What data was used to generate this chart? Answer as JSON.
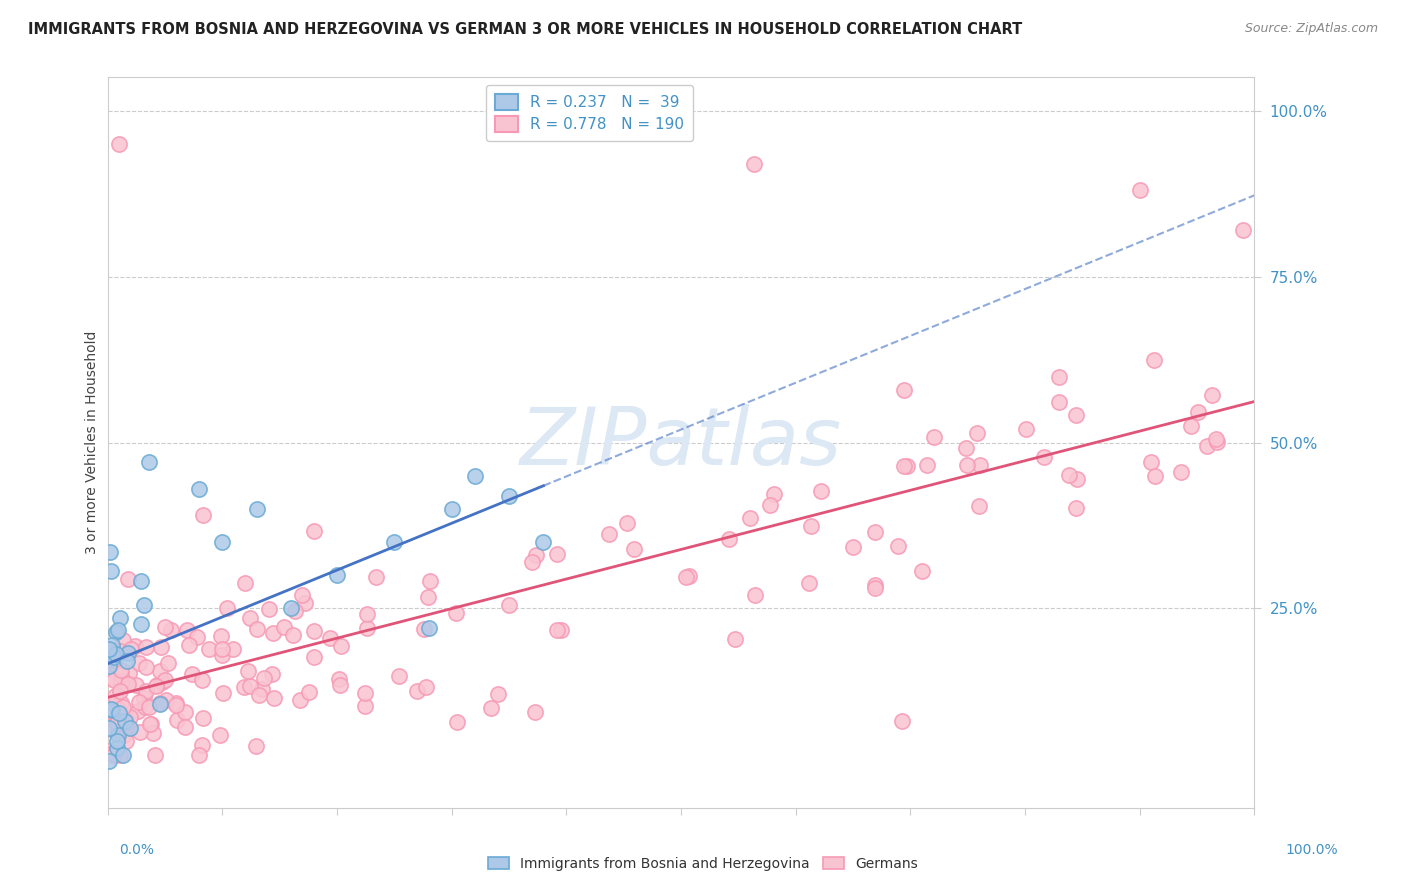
{
  "title": "IMMIGRANTS FROM BOSNIA AND HERZEGOVINA VS GERMAN 3 OR MORE VEHICLES IN HOUSEHOLD CORRELATION CHART",
  "source": "Source: ZipAtlas.com",
  "ylabel": "3 or more Vehicles in Household",
  "ytick_labels": [
    "25.0%",
    "50.0%",
    "75.0%",
    "100.0%"
  ],
  "ytick_values": [
    0.25,
    0.5,
    0.75,
    1.0
  ],
  "legend_R1": "R = 0.237",
  "legend_N1": "N =  39",
  "legend_R2": "R = 0.778",
  "legend_N2": "N = 190",
  "color_blue_fill": "#aec9e8",
  "color_blue_edge": "#6aaad4",
  "color_pink_fill": "#f9c4d2",
  "color_pink_edge": "#f799b4",
  "color_blue_line": "#4472c4",
  "color_pink_line": "#e05478",
  "color_blue_text": "#4292c6",
  "watermark_text": "ZIPatlas",
  "watermark_color": "#dde8f5",
  "background_color": "#ffffff",
  "legend_label1": "Immigrants from Bosnia and Herzegovina",
  "legend_label2": "Germans",
  "xlim": [
    0.0,
    1.0
  ],
  "ylim": [
    -0.05,
    1.05
  ]
}
